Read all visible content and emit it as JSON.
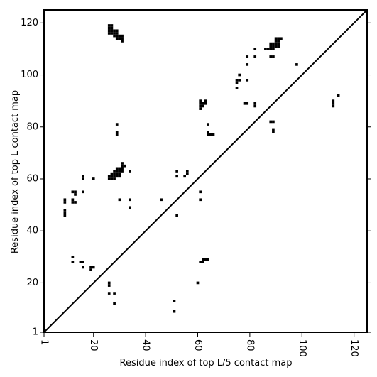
{
  "chart_data": {
    "type": "scatter",
    "marker": "square",
    "xlabel": "Residue index of top L/5 contact map",
    "ylabel": "Residue index of top L contact map",
    "xlim": [
      1,
      125
    ],
    "ylim": [
      1,
      125
    ],
    "xticks": [
      1,
      20,
      40,
      60,
      80,
      100,
      120
    ],
    "yticks": [
      1,
      20,
      40,
      60,
      80,
      100,
      120
    ],
    "grid": false,
    "diagonal": true,
    "colors": {
      "points": "#000000",
      "axes": "#000000",
      "background": "#ffffff"
    },
    "points": [
      [
        26,
        119
      ],
      [
        26,
        118
      ],
      [
        26,
        117
      ],
      [
        27,
        119
      ],
      [
        27,
        118
      ],
      [
        27,
        117
      ],
      [
        26,
        116
      ],
      [
        27,
        116
      ],
      [
        28,
        117
      ],
      [
        28,
        116
      ],
      [
        28,
        115
      ],
      [
        29,
        117
      ],
      [
        29,
        116
      ],
      [
        29,
        115
      ],
      [
        29,
        114
      ],
      [
        30,
        115
      ],
      [
        30,
        114
      ],
      [
        31,
        115
      ],
      [
        31,
        114
      ],
      [
        31,
        113
      ],
      [
        9,
        52
      ],
      [
        9,
        51
      ],
      [
        9,
        48
      ],
      [
        9,
        47
      ],
      [
        9,
        46
      ],
      [
        12,
        55
      ],
      [
        12,
        52
      ],
      [
        12,
        51
      ],
      [
        13,
        55
      ],
      [
        13,
        54
      ],
      [
        13,
        51
      ],
      [
        16,
        61
      ],
      [
        16,
        60
      ],
      [
        16,
        55
      ],
      [
        20,
        60
      ],
      [
        26,
        61
      ],
      [
        26,
        60
      ],
      [
        27,
        62
      ],
      [
        27,
        61
      ],
      [
        27,
        60
      ],
      [
        28,
        63
      ],
      [
        28,
        62
      ],
      [
        28,
        61
      ],
      [
        28,
        60
      ],
      [
        29,
        64
      ],
      [
        29,
        63
      ],
      [
        29,
        62
      ],
      [
        29,
        61
      ],
      [
        30,
        64
      ],
      [
        30,
        63
      ],
      [
        30,
        62
      ],
      [
        30,
        61
      ],
      [
        31,
        66
      ],
      [
        31,
        65
      ],
      [
        31,
        64
      ],
      [
        31,
        63
      ],
      [
        32,
        65
      ],
      [
        34,
        63
      ],
      [
        30,
        52
      ],
      [
        34,
        52
      ],
      [
        34,
        49
      ],
      [
        46,
        52
      ],
      [
        29,
        81
      ],
      [
        29,
        78
      ],
      [
        29,
        77
      ],
      [
        52,
        63
      ],
      [
        52,
        61
      ],
      [
        52,
        46
      ],
      [
        55,
        61
      ],
      [
        56,
        63
      ],
      [
        56,
        62
      ],
      [
        61,
        90
      ],
      [
        61,
        89
      ],
      [
        61,
        88
      ],
      [
        61,
        87
      ],
      [
        62,
        89
      ],
      [
        62,
        88
      ],
      [
        63,
        90
      ],
      [
        63,
        89
      ],
      [
        64,
        81
      ],
      [
        64,
        78
      ],
      [
        64,
        77
      ],
      [
        65,
        77
      ],
      [
        66,
        77
      ],
      [
        61,
        55
      ],
      [
        61,
        52
      ],
      [
        75,
        98
      ],
      [
        75,
        97
      ],
      [
        75,
        95
      ],
      [
        76,
        100
      ],
      [
        76,
        98
      ],
      [
        79,
        98
      ],
      [
        78,
        89
      ],
      [
        79,
        89
      ],
      [
        79,
        107
      ],
      [
        79,
        104
      ],
      [
        82,
        110
      ],
      [
        82,
        107
      ],
      [
        82,
        89
      ],
      [
        82,
        88
      ],
      [
        86,
        110
      ],
      [
        87,
        110
      ],
      [
        88,
        112
      ],
      [
        88,
        111
      ],
      [
        88,
        110
      ],
      [
        88,
        107
      ],
      [
        89,
        112
      ],
      [
        89,
        111
      ],
      [
        89,
        110
      ],
      [
        89,
        107
      ],
      [
        90,
        114
      ],
      [
        90,
        113
      ],
      [
        90,
        112
      ],
      [
        90,
        111
      ],
      [
        91,
        114
      ],
      [
        91,
        113
      ],
      [
        91,
        112
      ],
      [
        91,
        111
      ],
      [
        92,
        114
      ],
      [
        88,
        82
      ],
      [
        89,
        82
      ],
      [
        89,
        79
      ],
      [
        89,
        78
      ],
      [
        98,
        104
      ],
      [
        112,
        90
      ],
      [
        112,
        89
      ],
      [
        112,
        88
      ],
      [
        114,
        92
      ],
      [
        12,
        30
      ],
      [
        12,
        28
      ],
      [
        15,
        28
      ],
      [
        16,
        28
      ],
      [
        16,
        26
      ],
      [
        19,
        26
      ],
      [
        19,
        25
      ],
      [
        20,
        26
      ],
      [
        26,
        20
      ],
      [
        26,
        19
      ],
      [
        26,
        16
      ],
      [
        28,
        16
      ],
      [
        28,
        12
      ],
      [
        51,
        13
      ],
      [
        51,
        9
      ],
      [
        60,
        20
      ],
      [
        61,
        28
      ],
      [
        62,
        29
      ],
      [
        62,
        28
      ],
      [
        63,
        29
      ],
      [
        64,
        29
      ]
    ]
  }
}
